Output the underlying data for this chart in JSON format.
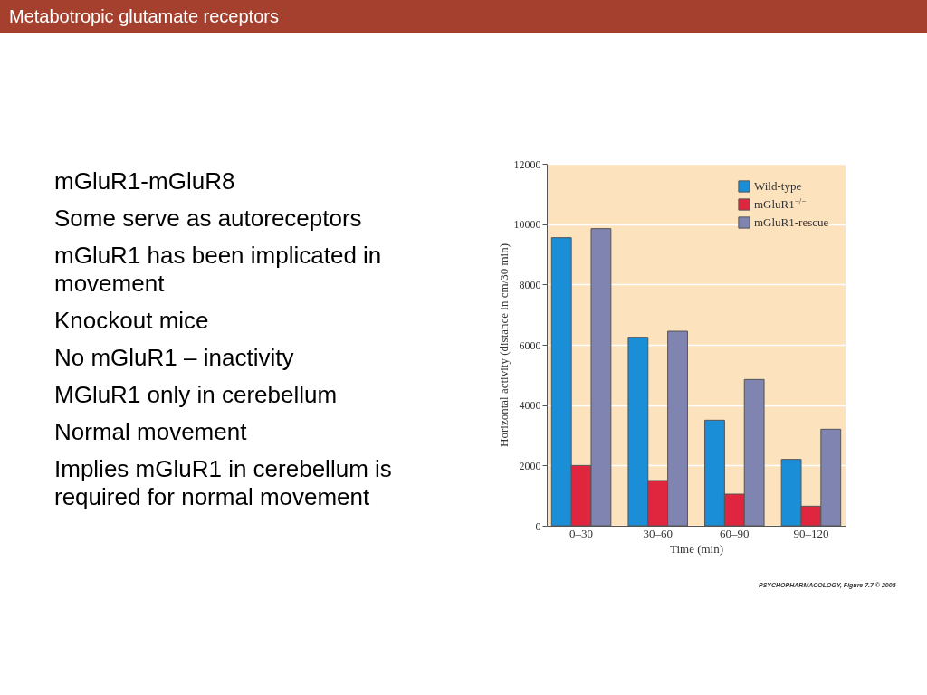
{
  "chart_data": {
    "type": "bar",
    "title": "Metabotropic glutamate receptors",
    "annotations": [
      "mGluR1-mGluR8",
      "Some serve as autoreceptors",
      "mGluR1 has been implicated in movement",
      "Knockout mice",
      "No mGluR1 – inactivity",
      "MGluR1 only in cerebellum",
      "Normal movement",
      "Implies mGluR1 in cerebellum is required for normal movement",
      "PSYCHOPHARMACOLOGY, Figure 7.7 © 2005"
    ],
    "xlabel": "Time (min)",
    "ylabel": "Horizontal activity (distance in cm/30 min)",
    "categories": [
      "0–30",
      "30–60",
      "60–90",
      "90–120"
    ],
    "series": [
      {
        "name": "Wild-type",
        "color": "#1a8fd8",
        "values": [
          9550,
          6250,
          3500,
          2200
        ]
      },
      {
        "name": "mGluR1$^{−/−}$",
        "color": "#e0263f",
        "values": [
          2000,
          1500,
          1050,
          650
        ]
      },
      {
        "name": "mGluR1-rescue",
        "color": "#7f84b0",
        "values": [
          9850,
          6450,
          4850,
          3200
        ]
      }
    ],
    "ylim": [
      0,
      12000
    ],
    "yticks": [
      0,
      2000,
      4000,
      6000,
      8000,
      10000,
      12000
    ],
    "grid": "y",
    "legend": "top right"
  }
}
